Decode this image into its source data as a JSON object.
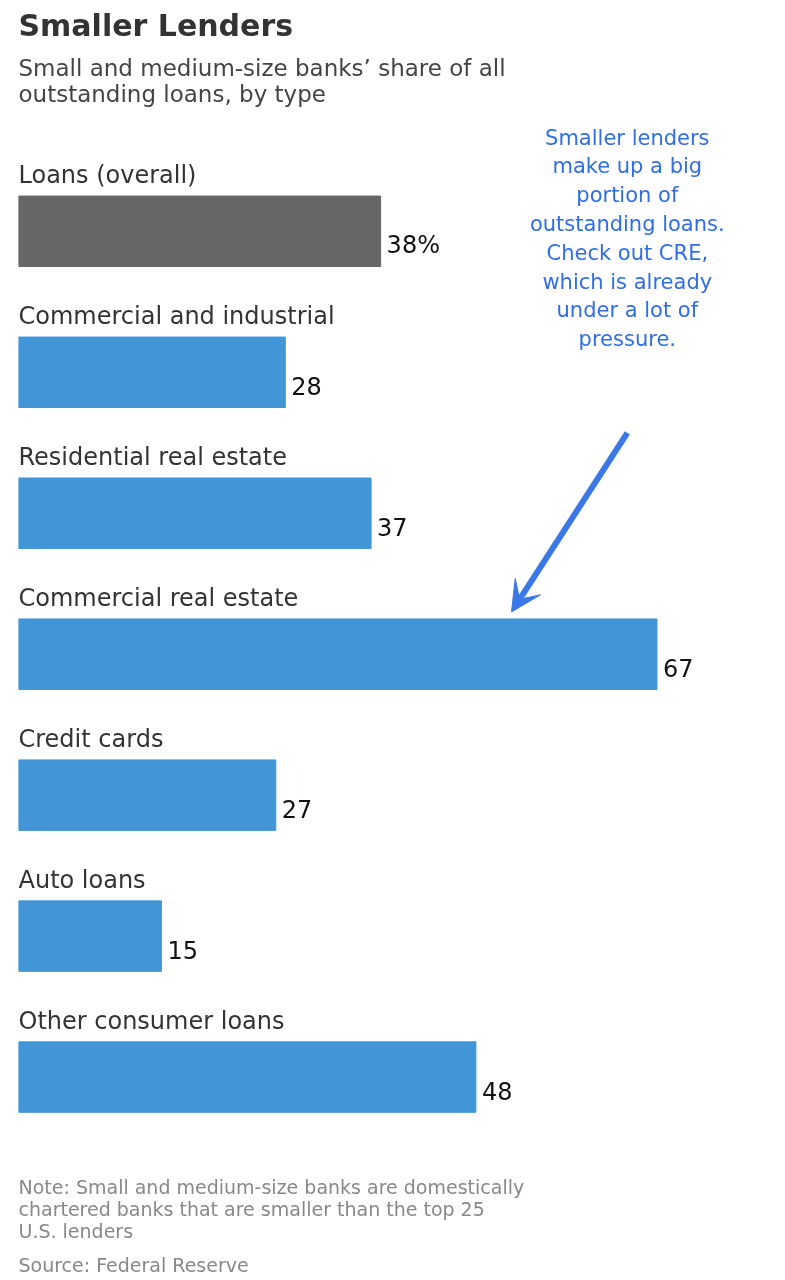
{
  "chart_data": {
    "type": "bar",
    "orientation": "horizontal",
    "title": "Smaller Lenders",
    "subtitle": "Small and medium-size banks’ share of all outstanding loans, by type",
    "categories": [
      "Loans (overall)",
      "Commercial and industrial",
      "Residential real estate",
      "Commercial real estate",
      "Credit cards",
      "Auto loans",
      "Other consumer loans"
    ],
    "values": [
      38,
      28,
      37,
      67,
      27,
      15,
      48
    ],
    "colors": [
      "#666666",
      "#4396d6",
      "#4396d6",
      "#4396d6",
      "#4396d6",
      "#4396d6",
      "#4396d6"
    ],
    "value_labels": [
      "38%",
      "28",
      "37",
      "67",
      "27",
      "15",
      "48"
    ],
    "annotations": [
      "Smaller lenders make up a big portion of outstanding loans. Check out CRE, which is already under a lot of pressure.",
      "Note: Small and medium-size banks are domestically chartered banks that are smaller than the top 25 U.S. lenders",
      "Source: Federal Reserve"
    ]
  }
}
